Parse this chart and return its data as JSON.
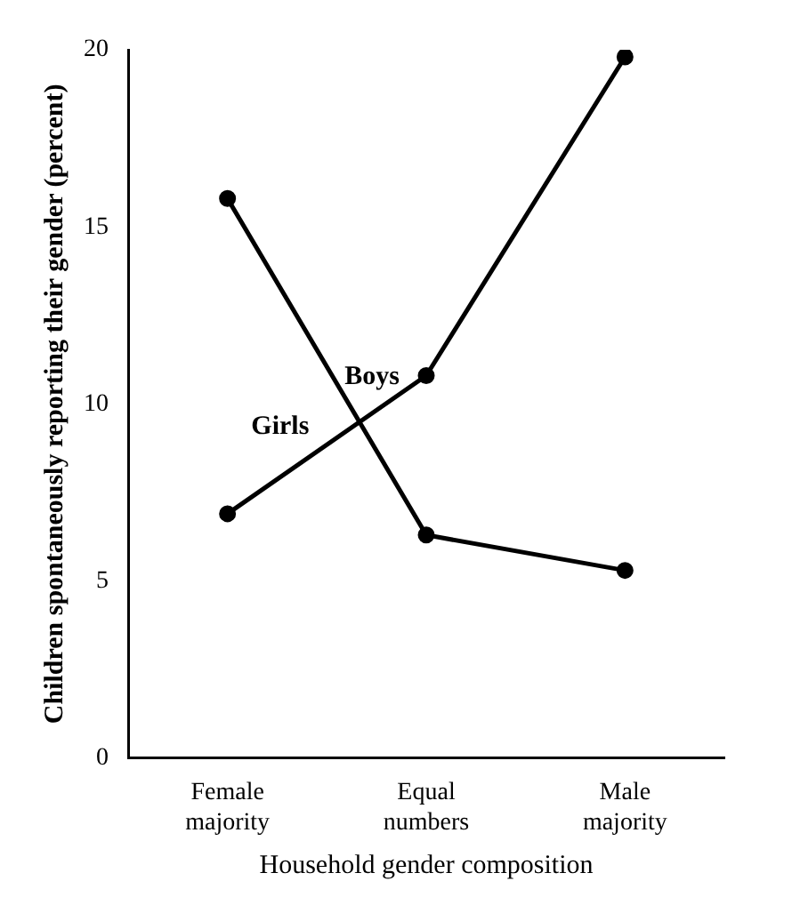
{
  "chart_data": {
    "type": "line",
    "xlabel": "Household gender composition",
    "ylabel": "Children spontaneously reporting their gender (percent)",
    "categories": [
      "Female majority",
      "Equal numbers",
      "Male majority"
    ],
    "series": [
      {
        "name": "Boys",
        "color": "#000000",
        "values": [
          15.8,
          6.3,
          5.3
        ]
      },
      {
        "name": "Girls",
        "color": "#000000",
        "values": [
          6.9,
          10.8,
          19.8
        ]
      }
    ],
    "ylim": [
      0,
      20
    ],
    "yticks": [
      0,
      5,
      10,
      15,
      20
    ],
    "grid": false,
    "legend": false,
    "marker": "circle",
    "line_style": "solid"
  }
}
